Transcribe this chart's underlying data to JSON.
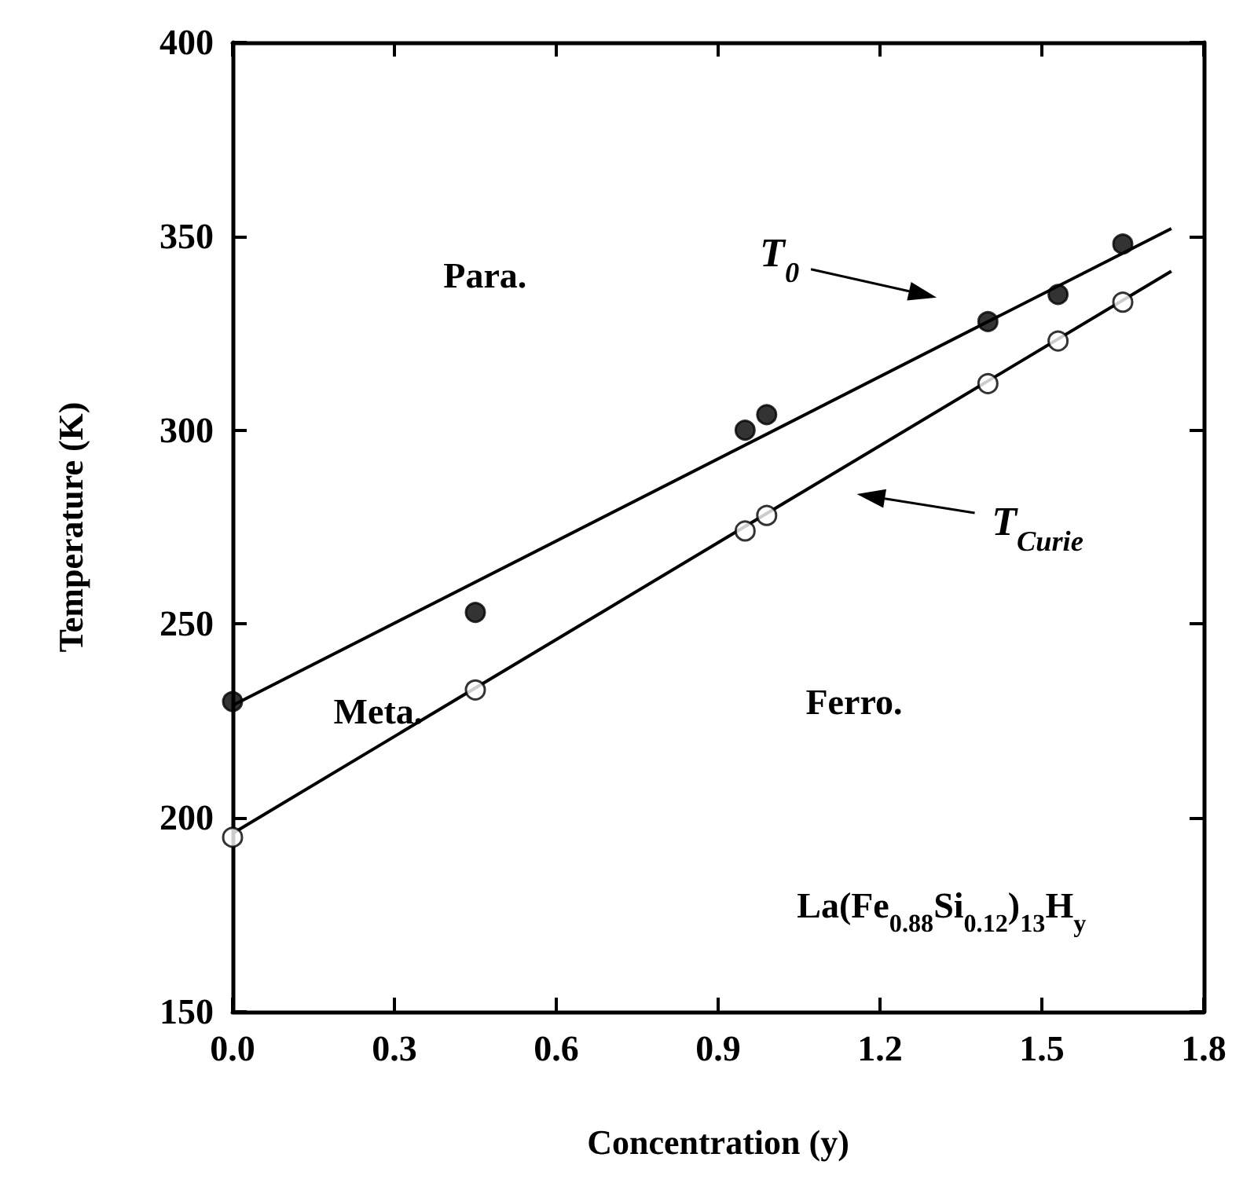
{
  "chart_data": {
    "type": "scatter",
    "xlabel": "Concentration (y)",
    "ylabel": "Temperature (K)",
    "annotations": [
      "Para.",
      "Meta.",
      "Ferro.",
      "La(Fe$_{0.88}$Si$_{0.12}$)$_{13}$H$_{y}$"
    ],
    "marker": "circle",
    "series": [
      {
        "color": "#000000",
        "x": [
          0,
          0.45,
          0.95,
          0.99,
          1.4,
          1.53,
          1.65
        ],
        "values": [
          230,
          253,
          300,
          304,
          328,
          335,
          348
        ]
      },
      {
        "color": "#ffffff",
        "x": [
          0,
          0.45,
          0.95,
          0.99,
          1.4,
          1.53,
          1.65
        ],
        "values": [
          195,
          233,
          274,
          278,
          312,
          323,
          333
        ]
      },
      {
        "type": "line",
        "name": "T$_{0}$",
        "marker": "none",
        "color": "#000000",
        "x": [
          0,
          1.74
        ],
        "values": [
          229,
          352
        ]
      },
      {
        "type": "line",
        "name": "T$_{Curie}$",
        "marker": "none",
        "color": "#000000",
        "x": [
          0,
          1.74
        ],
        "values": [
          196,
          341
        ]
      }
    ],
    "xlim": [
      0,
      1.8
    ],
    "xticks": [
      {
        "value": 0,
        "label": "0.0"
      },
      0.3,
      0.6,
      0.9,
      1.2,
      1.5,
      1.8
    ],
    "ylim": [
      150,
      400
    ],
    "yticks": [
      150,
      200,
      250,
      300,
      350,
      400
    ]
  }
}
